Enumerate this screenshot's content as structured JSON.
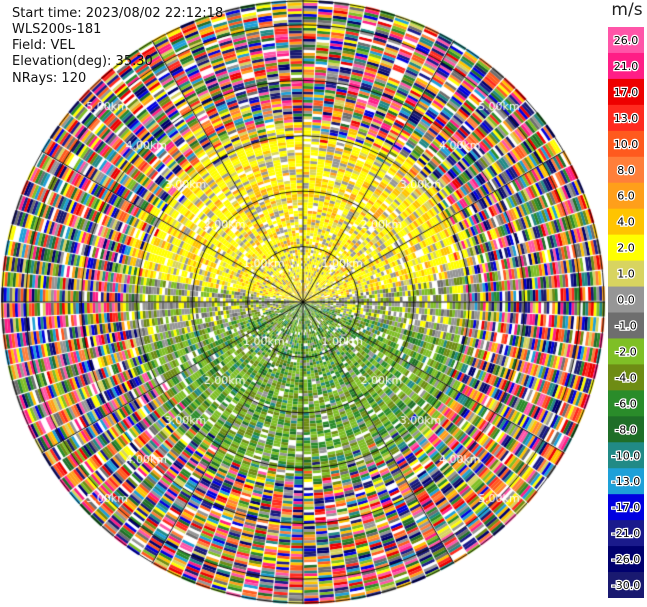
{
  "header": {
    "start_time": "Start time: 2023/08/02 22:12:18",
    "instrument": "WLS200s-181",
    "field": "Field: VEL",
    "elevation": "Elevation(deg): 35.30",
    "nrays": "NRays: 120"
  },
  "colorbar": {
    "unit": "m/s",
    "ticks": [
      "26.0",
      "21.0",
      "17.0",
      "13.0",
      "10.0",
      "8.0",
      "6.0",
      "4.0",
      "2.0",
      "1.0",
      "0.0",
      "-1.0",
      "-2.0",
      "-4.0",
      "-6.0",
      "-8.0",
      "-10.0",
      "-13.0",
      "-17.0",
      "-21.0",
      "-26.0",
      "-30.0"
    ],
    "colors": [
      "#ff55a8",
      "#ff1e86",
      "#ee0000",
      "#ff2a1f",
      "#ff5a1e",
      "#ff7f3a",
      "#ff9f1a",
      "#ffc400",
      "#ffff00",
      "#d8d460",
      "#969696",
      "#6e6e6e",
      "#7fbf26",
      "#6e8c14",
      "#2a8c2a",
      "#1f6e28",
      "#218a86",
      "#1ea0d8",
      "#0000e0",
      "#1a1a8c",
      "#00006e",
      "#191970"
    ]
  },
  "chart_data": {
    "type": "heatmap",
    "projection": "polar (PPI)",
    "field": "VEL",
    "nrays": 120,
    "range_rings_km": [
      1.0,
      2.0,
      3.0,
      4.0,
      5.0
    ],
    "ring_labels": [
      "1.00km",
      "2.00km",
      "3.00km",
      "4.00km",
      "5.00km"
    ],
    "azimuth_spokes_deg": [
      0,
      30,
      60,
      90,
      120,
      150,
      180,
      210,
      240,
      270,
      300,
      330
    ],
    "description_of_pattern": {
      "near_range_north": "positive ~2 m/s (yellow) with patches of 4–8 m/s (orange)",
      "near_range_south": "negative ~-2 to -6 m/s (green)",
      "transition": "~0 m/s (gray) along east-west axis",
      "far_range": "noise covering full colour scale"
    }
  }
}
